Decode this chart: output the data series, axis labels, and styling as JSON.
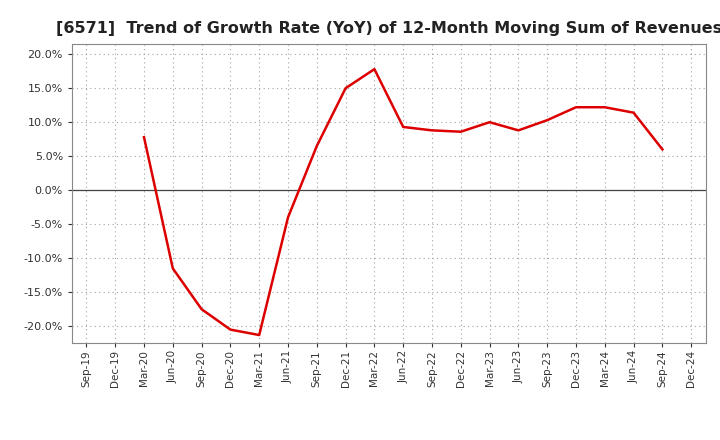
{
  "title": "[6571]  Trend of Growth Rate (YoY) of 12-Month Moving Sum of Revenues",
  "title_fontsize": 11.5,
  "line_color": "#dd0000",
  "line_width": 1.8,
  "background_color": "#ffffff",
  "plot_bg_color": "#ffffff",
  "grid_color": "#999999",
  "ylim": [
    -0.225,
    0.215
  ],
  "yticks": [
    -0.2,
    -0.15,
    -0.1,
    -0.05,
    0.0,
    0.05,
    0.1,
    0.15,
    0.2
  ],
  "dates": [
    "Sep-19",
    "Dec-19",
    "Mar-20",
    "Jun-20",
    "Sep-20",
    "Dec-20",
    "Mar-21",
    "Jun-21",
    "Sep-21",
    "Dec-21",
    "Mar-22",
    "Jun-22",
    "Sep-22",
    "Dec-22",
    "Mar-23",
    "Jun-23",
    "Sep-23",
    "Dec-23",
    "Mar-24",
    "Jun-24",
    "Sep-24",
    "Dec-24"
  ],
  "values": [
    null,
    null,
    0.078,
    -0.115,
    -0.175,
    -0.205,
    -0.213,
    -0.04,
    0.065,
    0.15,
    0.178,
    0.093,
    0.088,
    0.086,
    0.1,
    0.088,
    0.103,
    0.122,
    0.122,
    0.114,
    0.06,
    null
  ]
}
